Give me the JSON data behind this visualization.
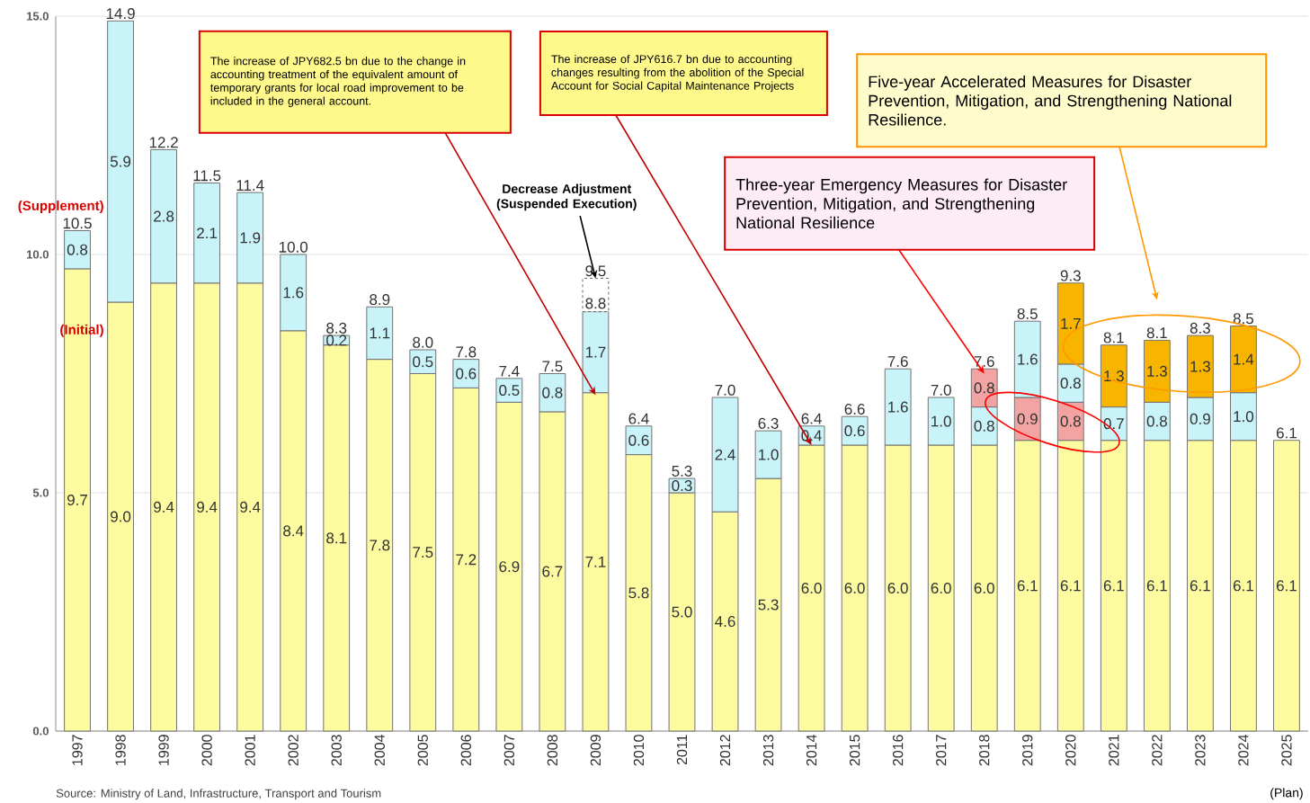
{
  "chart_data": {
    "type": "bar",
    "stacked": true,
    "categories": [
      "1997",
      "1998",
      "1999",
      "2000",
      "2001",
      "2002",
      "2003",
      "2004",
      "2005",
      "2006",
      "2007",
      "2008",
      "2009",
      "2010",
      "2011",
      "2012",
      "2013",
      "2014",
      "2015",
      "2016",
      "2017",
      "2018",
      "2019",
      "2020",
      "2021",
      "2022",
      "2023",
      "2024",
      "2025"
    ],
    "series": [
      {
        "name": "(Initial)",
        "color": "#fdfb9f",
        "values": [
          9.7,
          9.0,
          9.4,
          9.4,
          9.4,
          8.4,
          8.1,
          7.8,
          7.5,
          7.2,
          6.9,
          6.7,
          7.1,
          5.8,
          5.0,
          4.6,
          5.3,
          6.0,
          6.0,
          6.0,
          6.0,
          6.0,
          6.1,
          6.1,
          6.1,
          6.1,
          6.1,
          6.1,
          6.1
        ],
        "value_labels": [
          "9.7",
          "9.0",
          "9.4",
          "9.4",
          "9.4",
          "8.4",
          "8.1",
          "7.8",
          "7.5",
          "7.2",
          "6.9",
          "6.7",
          "7.1",
          "5.8",
          "5.0",
          "4.6",
          "5.3",
          "6.0",
          "6.0",
          "6.0",
          "6.0",
          "6.0",
          "6.1",
          "6.1",
          "6.1",
          "6.1",
          "6.1",
          "6.1",
          "6.1"
        ]
      },
      {
        "color": "#f4a3a3",
        "values": [
          null,
          null,
          null,
          null,
          null,
          null,
          null,
          null,
          null,
          null,
          null,
          null,
          null,
          null,
          null,
          null,
          null,
          null,
          null,
          null,
          null,
          null,
          0.9,
          0.8,
          null,
          null,
          null,
          null,
          null
        ],
        "value_labels": [
          null,
          null,
          null,
          null,
          null,
          null,
          null,
          null,
          null,
          null,
          null,
          null,
          null,
          null,
          null,
          null,
          null,
          null,
          null,
          null,
          null,
          null,
          "0.9",
          "0.8",
          null,
          null,
          null,
          null,
          null
        ]
      },
      {
        "name": "(Supplement)",
        "color": "#c7f3f9",
        "values": [
          0.8,
          5.9,
          2.8,
          2.1,
          1.9,
          1.6,
          0.2,
          1.1,
          0.5,
          0.6,
          0.5,
          0.8,
          1.7,
          0.6,
          0.3,
          2.4,
          1.0,
          0.4,
          0.6,
          1.6,
          1.0,
          0.8,
          1.6,
          0.8,
          0.7,
          0.8,
          0.9,
          1.0,
          null
        ],
        "value_labels": [
          "0.8",
          "5.9",
          "2.8",
          "2.1",
          "1.9",
          "1.6",
          "0.2",
          "1.1",
          "0.5",
          "0.6",
          "0.5",
          "0.8",
          "1.7",
          "0.6",
          "0.3",
          "2.4",
          "1.0",
          "0.4",
          "0.6",
          "1.6",
          "1.0",
          "0.8",
          "1.6",
          "0.8",
          "0.7",
          "0.8",
          "0.9",
          "1.0",
          null
        ]
      },
      {
        "color": "#f4a3a3",
        "values": [
          null,
          null,
          null,
          null,
          null,
          null,
          null,
          null,
          null,
          null,
          null,
          null,
          null,
          null,
          null,
          null,
          null,
          null,
          null,
          null,
          null,
          0.8,
          null,
          null,
          null,
          null,
          null,
          null,
          null
        ],
        "value_labels": [
          null,
          null,
          null,
          null,
          null,
          null,
          null,
          null,
          null,
          null,
          null,
          null,
          null,
          null,
          null,
          null,
          null,
          null,
          null,
          null,
          null,
          "0.8",
          null,
          null,
          null,
          null,
          null,
          null,
          null
        ]
      },
      {
        "color": "#f7b500",
        "values": [
          null,
          null,
          null,
          null,
          null,
          null,
          null,
          null,
          null,
          null,
          null,
          null,
          null,
          null,
          null,
          null,
          null,
          null,
          null,
          null,
          null,
          null,
          null,
          1.7,
          1.3,
          1.3,
          1.3,
          1.4,
          null
        ],
        "value_labels": [
          null,
          null,
          null,
          null,
          null,
          null,
          null,
          null,
          null,
          null,
          null,
          null,
          null,
          null,
          null,
          null,
          null,
          null,
          null,
          null,
          null,
          null,
          null,
          "1.7",
          "1.3",
          "1.3",
          "1.3",
          "1.4",
          null
        ]
      },
      {
        "color": "#ffffff",
        "line_style": "dashed",
        "values": [
          null,
          null,
          null,
          null,
          null,
          null,
          null,
          null,
          null,
          null,
          null,
          null,
          0.7,
          null,
          null,
          null,
          null,
          null,
          null,
          null,
          null,
          null,
          null,
          null,
          null,
          null,
          null,
          null,
          null
        ]
      }
    ],
    "totals": [
      "10.5",
      "14.9",
      "12.2",
      "11.5",
      "11.4",
      "10.0",
      "8.3",
      "8.9",
      "8.0",
      "7.8",
      "7.4",
      "7.5",
      "9.5",
      "6.4",
      "5.3",
      "7.0",
      "6.3",
      "6.4",
      "6.6",
      "7.6",
      "7.0",
      "7.6",
      "8.5",
      "9.3",
      "8.1",
      "8.1",
      "8.3",
      "8.5",
      "6.1"
    ],
    "ylim": [
      0,
      15
    ],
    "yticks": [
      {
        "value": 0,
        "label": "0.0"
      },
      {
        "value": 5,
        "label": "5.0"
      },
      {
        "value": 10,
        "label": "10.0"
      },
      {
        "value": 15,
        "label": "15.0"
      }
    ],
    "grid": "y",
    "annotations": [
      "The increase of JPY682.5 bn due to the change in accounting treatment of the equivalent amount of temporary grants for local road improvement to be included in the general account.",
      "The increase of JPY616.7 bn due to accounting changes resulting from the abolition of the Special Account for Social Capital Maintenance Projects",
      {
        "text": "Decrease Adjustment (Suspended Execution)",
        "x": "2009",
        "y": 9.5
      },
      "Three-year Emergency Measures for Disaster Prevention, Mitigation, and Strengthening National Resilience",
      "Five-year Accelerated Measures for Disaster Prevention, Mitigation, and Strengthening National Resilience.",
      {
        "text": "8.8",
        "x": "2009",
        "y": 8.8
      },
      "(Plan)",
      "Source: Ministry of Land, Infrastructure, Transport and Tourism"
    ]
  }
}
